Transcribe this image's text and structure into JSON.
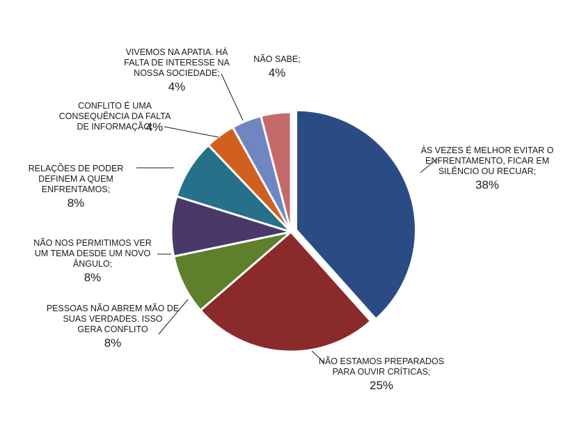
{
  "chart_data": {
    "type": "pie",
    "title": "",
    "start_angle_deg": 0,
    "direction": "clockwise",
    "slices": [
      {
        "label_lines": [
          "ÀS VEZES É MELHOR EVITAR O",
          "ENFRENTAMENTO, FICAR EM",
          "SILÊNCIO OU RECUAR;"
        ],
        "value": 38,
        "pct_label": "38%",
        "color": "#2B4B84",
        "exploded": true
      },
      {
        "label_lines": [
          "NÃO ESTAMOS PREPARADOS",
          "PARA OUVIR CRÍTICAS;"
        ],
        "value": 25,
        "pct_label": "25%",
        "color": "#8B2A2A"
      },
      {
        "label_lines": [
          "PESSOAS NÃO ABREM MÃO DE",
          "SUAS VERDADES. ISSO",
          "GERA CONFLITO"
        ],
        "value": 8,
        "pct_label": "8%",
        "color": "#5E7F2C"
      },
      {
        "label_lines": [
          "NÃO NOS PERMITIMOS VER",
          "UM TEMA DESDE UM NOVO",
          "ÂNGULO;"
        ],
        "value": 8,
        "pct_label": "8%",
        "color": "#4A3869"
      },
      {
        "label_lines": [
          "RELAÇÕES DE PODER",
          "DEFINEM A QUEM",
          "ENFRENTAMOS;"
        ],
        "value": 8,
        "pct_label": "8%",
        "color": "#277089"
      },
      {
        "label_lines": [
          "CONFLITO É UMA",
          "CONSEQUÊNCIA DA FALTA",
          "DE  INFORMAÇÃO;"
        ],
        "value": 4,
        "pct_label": "4%",
        "color": "#D1601F"
      },
      {
        "label_lines": [
          "VIVEMOS NA APATIA. HÁ",
          "FALTA DE INTERESSE NA",
          "NOSSA SOCIEDADE;"
        ],
        "value": 4,
        "pct_label": "4%",
        "color": "#6F86C2"
      },
      {
        "label_lines": [
          "NÃO SABE;"
        ],
        "value": 4,
        "pct_label": "4%",
        "color": "#C46A6A"
      }
    ]
  }
}
